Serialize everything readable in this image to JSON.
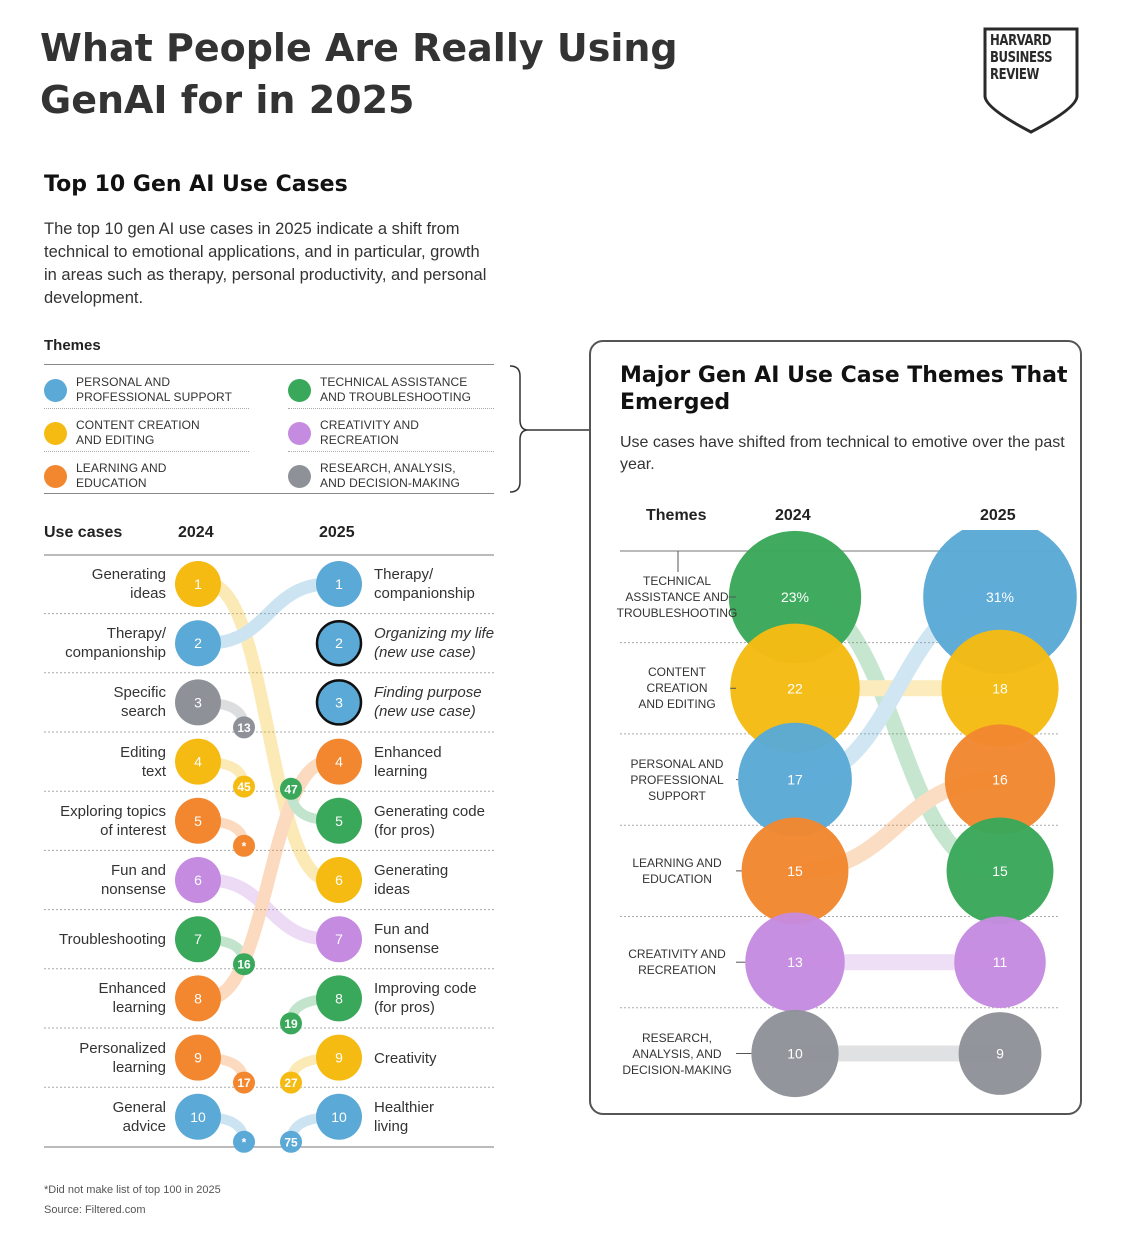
{
  "title_line1": "What People Are Really Using",
  "title_line2": "GenAI for in 2025",
  "logo": {
    "line1": "HARVARD",
    "line2": "BUSINESS",
    "line3": "REVIEW"
  },
  "left": {
    "title": "Top 10 Gen AI Use Cases",
    "description": "The top 10 gen AI use cases in 2025 indicate a shift from technical to emotional applications, and in particular, growth in areas such as therapy, personal productivity, and personal development.",
    "themes_heading": "Themes",
    "header_use_cases": "Use cases",
    "header_2024": "2024",
    "header_2025": "2025",
    "footnote": "*Did not make list of top 100 in 2025",
    "source": "Source: Filtered.com"
  },
  "themes": [
    {
      "key": "personal",
      "line1": "Personal and",
      "line2": "professional support",
      "color": "#5aa9d6"
    },
    {
      "key": "technical",
      "line1": "Technical assistance",
      "line2": "and troubleshooting",
      "color": "#3aa85a"
    },
    {
      "key": "content",
      "line1": "Content creation",
      "line2": "and editing",
      "color": "#f5bb12"
    },
    {
      "key": "creativity",
      "line1": "Creativity and",
      "line2": "recreation",
      "color": "#c58be0"
    },
    {
      "key": "learning",
      "line1": "Learning and",
      "line2": "education",
      "color": "#f2872f"
    },
    {
      "key": "research",
      "line1": "Research, analysis,",
      "line2": "and decision-making",
      "color": "#8e9298"
    }
  ],
  "chart_data": [
    {
      "type": "slope",
      "title": "Top 10 Gen AI Use Cases",
      "left_column": "2024",
      "right_column": "2025",
      "use_cases_2024": [
        {
          "rank": "1",
          "line1": "Generating",
          "line2": "ideas",
          "theme": "content",
          "rank_2025": "6"
        },
        {
          "rank": "2",
          "line1": "Therapy/",
          "line2": "companionship",
          "theme": "personal",
          "rank_2025": "1"
        },
        {
          "rank": "3",
          "line1": "Specific",
          "line2": "search",
          "theme": "research",
          "rank_2025": "13"
        },
        {
          "rank": "4",
          "line1": "Editing",
          "line2": "text",
          "theme": "content",
          "rank_2025": "45"
        },
        {
          "rank": "5",
          "line1": "Exploring topics",
          "line2": "of interest",
          "theme": "learning",
          "rank_2025": "*"
        },
        {
          "rank": "6",
          "line1": "Fun and",
          "line2": "nonsense",
          "theme": "creativity",
          "rank_2025": "7"
        },
        {
          "rank": "7",
          "line1": "Troubleshooting",
          "line2": "",
          "theme": "technical",
          "rank_2025": "16"
        },
        {
          "rank": "8",
          "line1": "Enhanced",
          "line2": "learning",
          "theme": "learning",
          "rank_2025": "4"
        },
        {
          "rank": "9",
          "line1": "Personalized",
          "line2": "learning",
          "theme": "learning",
          "rank_2025": "17"
        },
        {
          "rank": "10",
          "line1": "General",
          "line2": "advice",
          "theme": "personal",
          "rank_2025": "*"
        }
      ],
      "use_cases_2025": [
        {
          "rank": "1",
          "line1": "Therapy/",
          "line2": "companionship",
          "theme": "personal",
          "italic": false,
          "outlined": false,
          "rank_2024": "2"
        },
        {
          "rank": "2",
          "line1": "Organizing my life",
          "line2": "(new use case)",
          "theme": "personal",
          "italic": true,
          "outlined": true,
          "rank_2024": ""
        },
        {
          "rank": "3",
          "line1": "Finding purpose",
          "line2": "(new use case)",
          "theme": "personal",
          "italic": true,
          "outlined": true,
          "rank_2024": ""
        },
        {
          "rank": "4",
          "line1": "Enhanced",
          "line2": "learning",
          "theme": "learning",
          "italic": false,
          "outlined": false,
          "rank_2024": "8"
        },
        {
          "rank": "5",
          "line1": "Generating code",
          "line2": "(for pros)",
          "theme": "technical",
          "italic": false,
          "outlined": false,
          "rank_2024": "47"
        },
        {
          "rank": "6",
          "line1": "Generating",
          "line2": "ideas",
          "theme": "content",
          "italic": false,
          "outlined": false,
          "rank_2024": "1"
        },
        {
          "rank": "7",
          "line1": "Fun and",
          "line2": "nonsense",
          "theme": "creativity",
          "italic": false,
          "outlined": false,
          "rank_2024": "6"
        },
        {
          "rank": "8",
          "line1": "Improving code",
          "line2": "(for pros)",
          "theme": "technical",
          "italic": false,
          "outlined": false,
          "rank_2024": "19"
        },
        {
          "rank": "9",
          "line1": "Creativity",
          "line2": "",
          "theme": "content",
          "italic": false,
          "outlined": false,
          "rank_2024": "27"
        },
        {
          "rank": "10",
          "line1": "Healthier",
          "line2": "living",
          "theme": "personal",
          "italic": false,
          "outlined": false,
          "rank_2024": "75"
        }
      ]
    },
    {
      "type": "bubble-slope",
      "title": "Major Gen AI Use Case Themes That Emerged",
      "description": "Use cases have shifted from technical to emotive over the past year.",
      "header_themes": "Themes",
      "header_2024": "2024",
      "header_2025": "2025",
      "unit": "%",
      "rows": [
        {
          "line1": "Technical",
          "line2": "assistance and",
          "line3": "troubleshooting",
          "theme": "technical",
          "value_2024": 23,
          "label_2024": "23%"
        },
        {
          "line1": "Content",
          "line2": "creation",
          "line3": "and editing",
          "theme": "content",
          "value_2024": 22,
          "label_2024": "22"
        },
        {
          "line1": "Personal and",
          "line2": "professional",
          "line3": "support",
          "theme": "personal",
          "value_2024": 17,
          "label_2024": "17"
        },
        {
          "line1": "Learning and",
          "line2": "education",
          "line3": "",
          "theme": "learning",
          "value_2024": 15,
          "label_2024": "15"
        },
        {
          "line1": "Creativity and",
          "line2": "recreation",
          "line3": "",
          "theme": "creativity",
          "value_2024": 13,
          "label_2024": "13"
        },
        {
          "line1": "Research,",
          "line2": "analysis, and",
          "line3": "decision-making",
          "theme": "research",
          "value_2024": 10,
          "label_2024": "10"
        }
      ],
      "values_2025": [
        {
          "theme": "personal",
          "value": 31,
          "label": "31%"
        },
        {
          "theme": "content",
          "value": 18,
          "label": "18"
        },
        {
          "theme": "learning",
          "value": 16,
          "label": "16"
        },
        {
          "theme": "technical",
          "value": 15,
          "label": "15"
        },
        {
          "theme": "creativity",
          "value": 11,
          "label": "11"
        },
        {
          "theme": "research",
          "value": 9,
          "label": "9"
        }
      ]
    }
  ]
}
